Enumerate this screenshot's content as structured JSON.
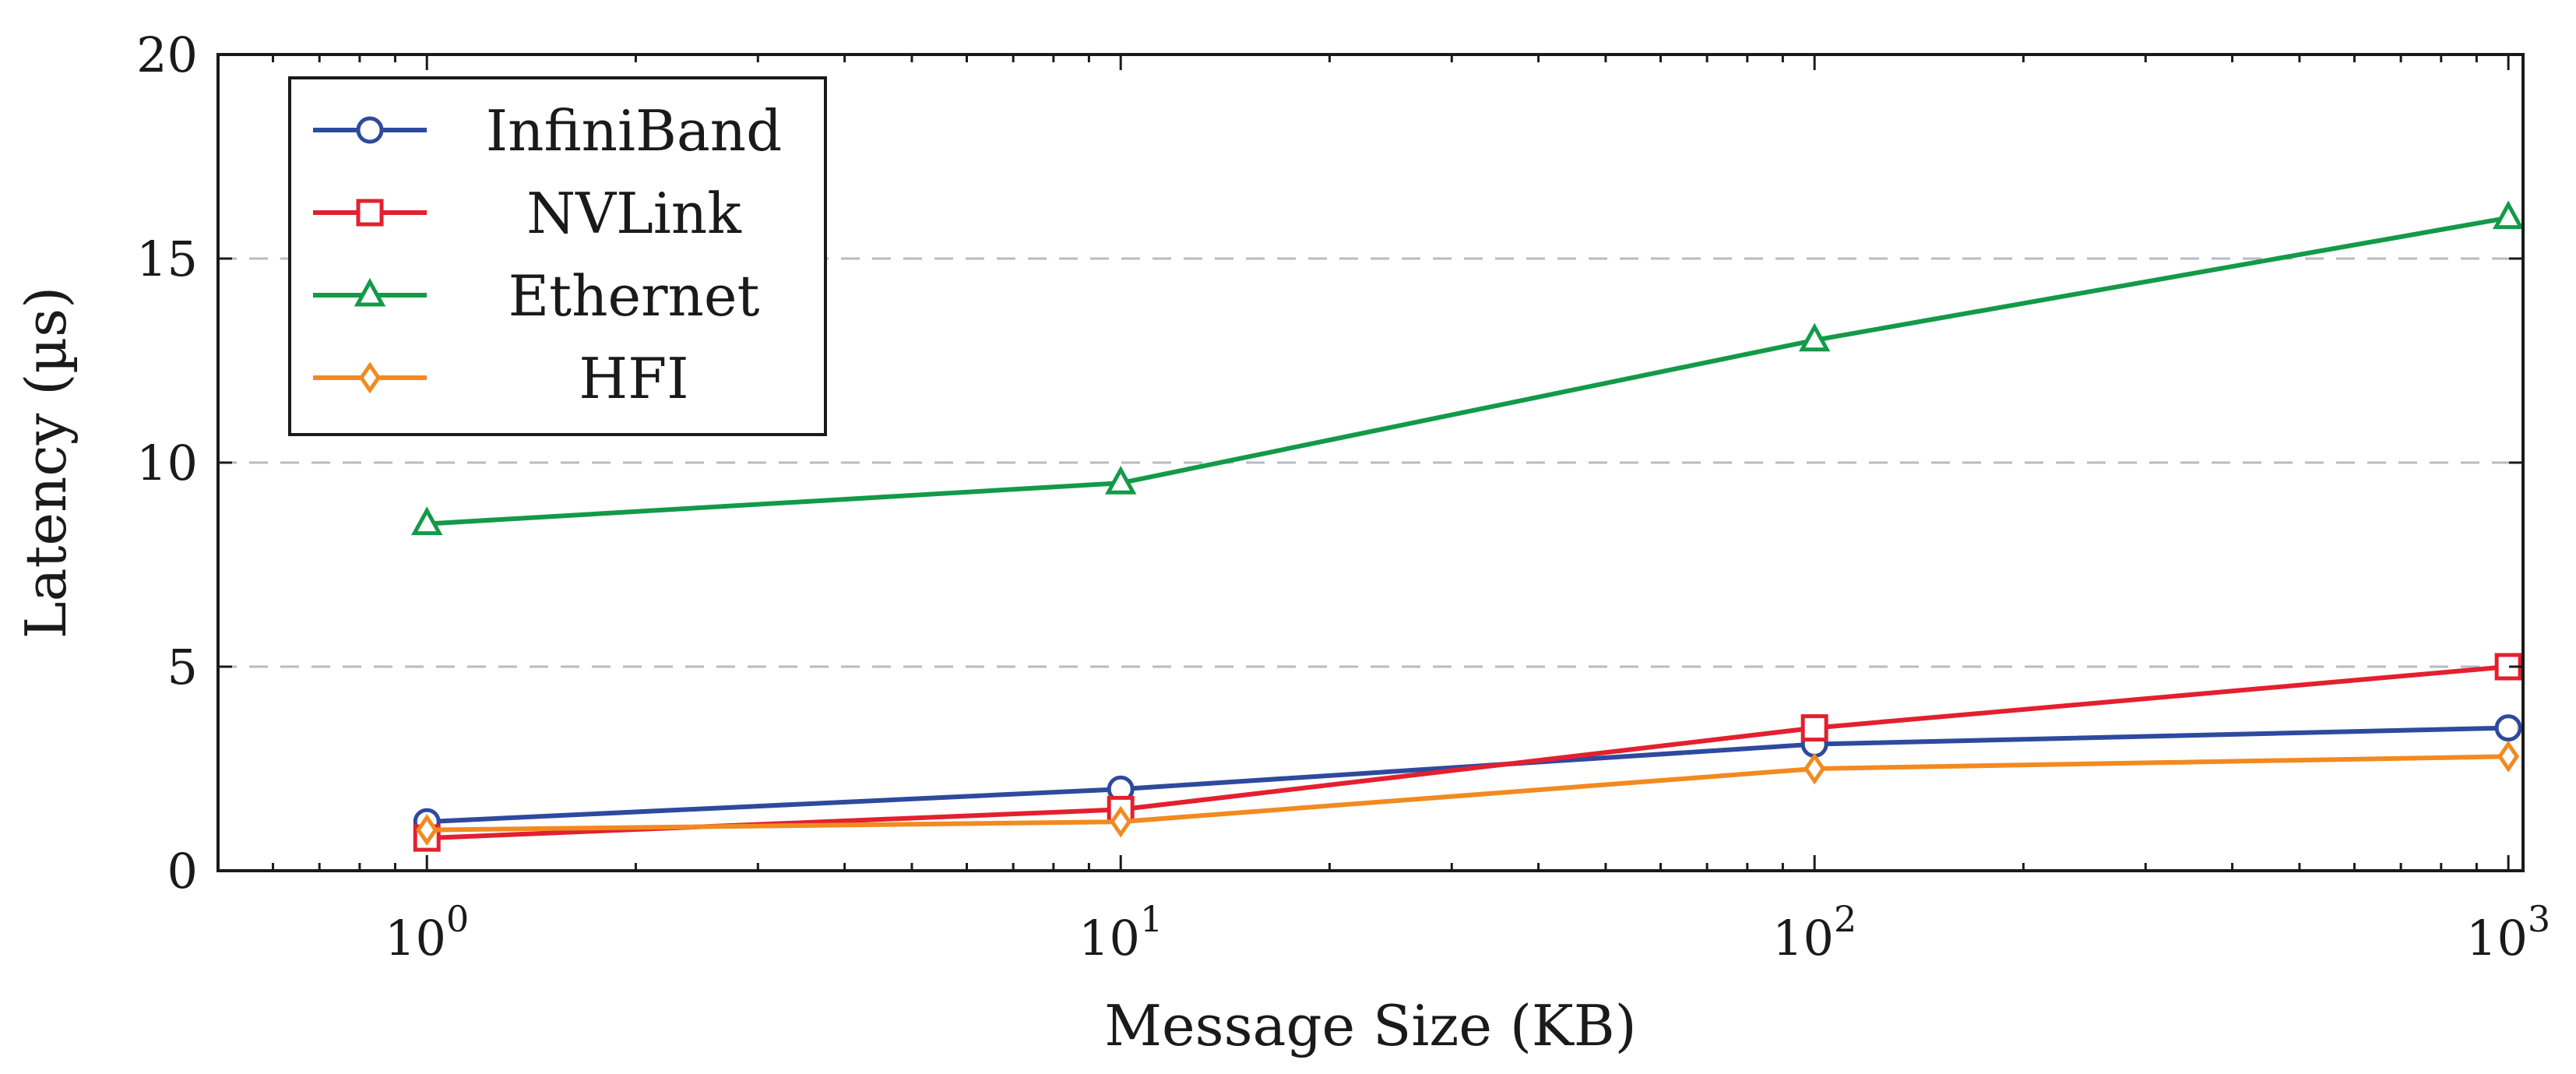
{
  "chart_data": {
    "type": "line",
    "title": "",
    "xlabel": "Message Size (KB)",
    "ylabel": "Latency (µs)",
    "x_scale": "log",
    "x": [
      1,
      10,
      100,
      1000
    ],
    "xlim": [
      0.5,
      1050
    ],
    "ylim": [
      0,
      20
    ],
    "x_ticks": [
      {
        "base": "10",
        "exp": "0",
        "value": 1
      },
      {
        "base": "10",
        "exp": "1",
        "value": 10
      },
      {
        "base": "10",
        "exp": "2",
        "value": 100
      },
      {
        "base": "10",
        "exp": "3",
        "value": 1000
      }
    ],
    "y_ticks": [
      {
        "label": "0",
        "value": 0
      },
      {
        "label": "5",
        "value": 5
      },
      {
        "label": "10",
        "value": 10
      },
      {
        "label": "15",
        "value": 15
      },
      {
        "label": "20",
        "value": 20
      }
    ],
    "grid": "horizontal-dashed",
    "legend_position": "top-left",
    "series": [
      {
        "name": "InfiniBand",
        "values": [
          1.2,
          2.0,
          3.1,
          3.5
        ],
        "color": "#2e4a9e",
        "marker": "circle"
      },
      {
        "name": "NVLink",
        "values": [
          0.8,
          1.5,
          3.5,
          5.0
        ],
        "color": "#e3202f",
        "marker": "square"
      },
      {
        "name": "Ethernet",
        "values": [
          8.5,
          9.5,
          13.0,
          16.0
        ],
        "color": "#139a48",
        "marker": "triangle"
      },
      {
        "name": "HFI",
        "values": [
          1.0,
          1.2,
          2.5,
          2.8
        ],
        "color": "#f28a20",
        "marker": "diamond"
      }
    ]
  }
}
